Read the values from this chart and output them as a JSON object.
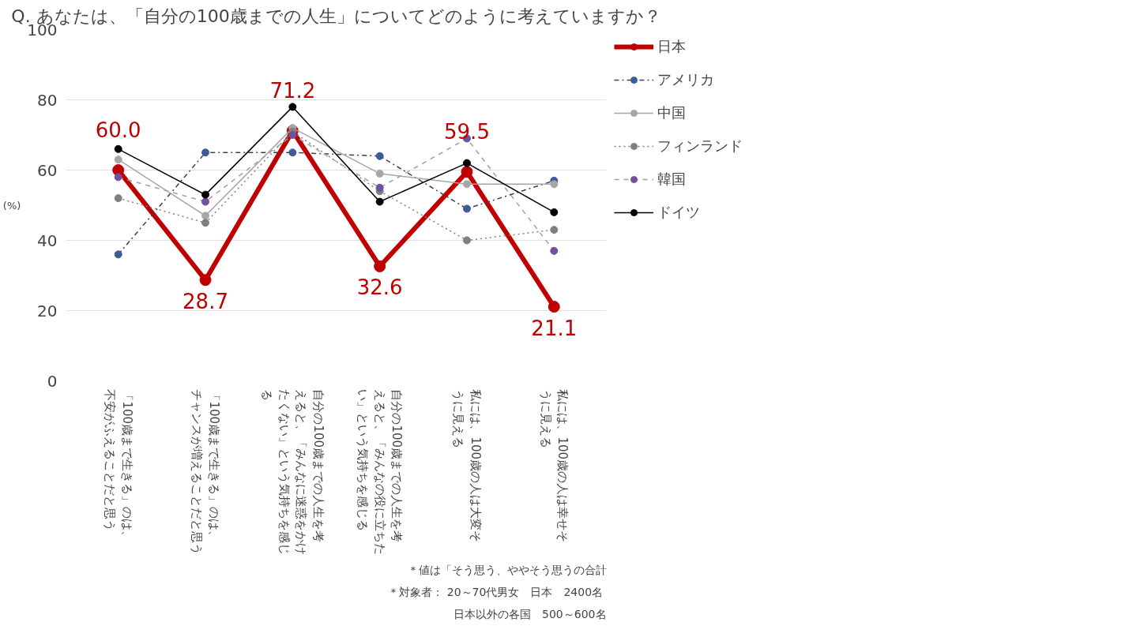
{
  "chart_data": {
    "type": "line",
    "title": "Q. あなたは、「自分の100歳までの人生」についてどのように考えていますか？",
    "ylabel": "(%)",
    "categories": [
      "「100歳まで生きる」のは、不安がふえることだと思う",
      "「100歳まで生きる」のは、チャンスが増えることだと思う",
      "自分の100歳までの人生を考えると、「みんなに迷惑をかけたくない」という気持ちを感じる",
      "自分の100歳までの人生を考えると、「みんなの役に立ちたい」という気持ちを感じる",
      "私には、100歳の人は大変そうに見える",
      "私には、100歳の人は幸せそうに見える"
    ],
    "series": [
      {
        "name": "日本",
        "color": "#c00000",
        "values": [
          60.0,
          28.7,
          71.2,
          32.6,
          59.5,
          21.1
        ],
        "value_labels": [
          "60.0",
          "28.7",
          "71.2",
          "32.6",
          "59.5",
          "21.1"
        ],
        "line_style": "solid"
      },
      {
        "name": "アメリカ",
        "color": "#3f5a9a",
        "values": [
          36,
          65,
          65,
          64,
          49,
          57
        ],
        "line_style": "dashdot"
      },
      {
        "name": "中国",
        "color": "#a6a6a6",
        "values": [
          63,
          47,
          72,
          59,
          56,
          56
        ],
        "line_style": "solid"
      },
      {
        "name": "フィンランド",
        "color": "#808080",
        "values": [
          52,
          45,
          71,
          54,
          40,
          43
        ],
        "line_style": "dotted"
      },
      {
        "name": "韓国",
        "color": "#7050a0",
        "values": [
          58,
          51,
          70,
          55,
          69,
          37
        ],
        "line_style": "dashed"
      },
      {
        "name": "ドイツ",
        "color": "#000000",
        "values": [
          66,
          53,
          78,
          51,
          62,
          48
        ],
        "line_style": "solid"
      }
    ],
    "ylim": [
      0,
      100
    ],
    "yticks": [
      0,
      20,
      40,
      60,
      80,
      100
    ],
    "grid": "y",
    "legend": "right",
    "marker": "circle",
    "annotations": [
      "＊値は「そう思う、ややそう思うの合計",
      "＊対象者：  20～70代男女　日本　2400名",
      "日本以外の各国　500～600名"
    ]
  }
}
